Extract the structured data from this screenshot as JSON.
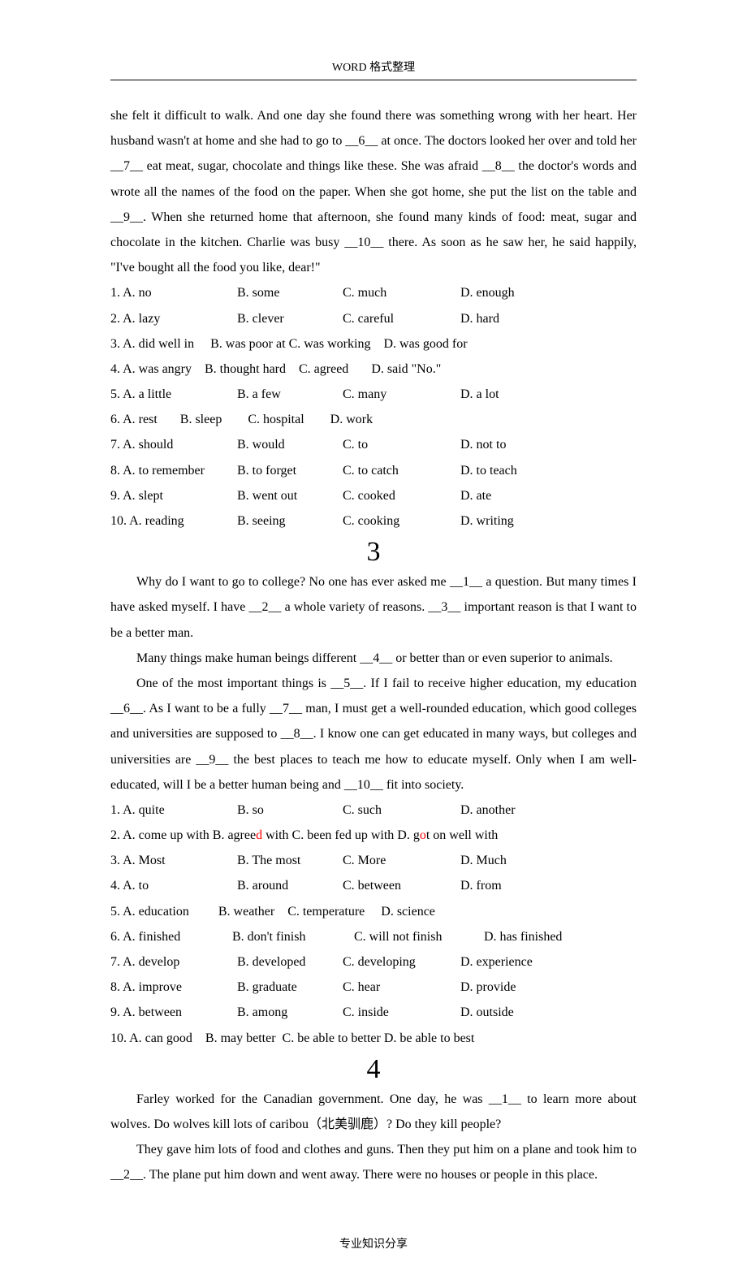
{
  "header": "WORD 格式整理",
  "footer": "专业知识分享",
  "passage2_tail": "she felt it difficult to walk. And one day she found there was something wrong with her heart. Her husband wasn't at home and she had to go to __6__ at once. The doctors looked her over and told her __7__ eat meat, sugar, chocolate and things like these. She was afraid __8__ the doctor's words and wrote all the names of the food on the paper. When she got home, she put the list on the table and __9__. When she returned home that afternoon, she found many kinds of food: meat, sugar and chocolate in the kitchen. Charlie was busy __10__ there. As soon as he saw her, he said happily, \"I've bought all the food you like, dear!\"",
  "options2": [
    {
      "n": "1.",
      "a": "A. no",
      "b": "B. some",
      "c": "C. much",
      "d": "D. enough"
    },
    {
      "n": "2.",
      "a": "A. lazy",
      "b": "B. clever",
      "c": "C. careful",
      "d": "D. hard"
    },
    {
      "n": "3.",
      "a": "A. did well in",
      "b": "B. was poor at",
      "c": "C. was working",
      "d": "D. was good for"
    },
    {
      "n": "4.",
      "a": "A. was angry",
      "b": "B. thought hard",
      "c": "C. agreed",
      "d": "D. said \"No.\""
    },
    {
      "n": "5.",
      "a": "A. a little",
      "b": "B. a few",
      "c": "C. many",
      "d": "D. a lot"
    },
    {
      "n": "6.",
      "a": "A. rest",
      "b": "B. sleep",
      "c": "C. hospital",
      "d": "D. work"
    },
    {
      "n": "7.",
      "a": "A. should",
      "b": "B. would",
      "c": "C. to",
      "d": "D. not to"
    },
    {
      "n": "8.",
      "a": "A. to remember",
      "b": "B. to forget",
      "c": "C. to catch",
      "d": "D. to teach"
    },
    {
      "n": "9.",
      "a": "A. slept",
      "b": "B. went out",
      "c": "C. cooked",
      "d": "D. ate"
    },
    {
      "n": "10.",
      "a": "A. reading",
      "b": "B. seeing",
      "c": "C. cooking",
      "d": "D. writing"
    }
  ],
  "section3_num": "3",
  "passage3_p1": "Why do I want to go to college? No one has ever asked me __1__ a question. But many times I have asked myself. I have __2__ a whole variety of reasons. __3__ important reason is that I want to be a better man.",
  "passage3_p2": "Many things make human beings different __4__ or better than or even superior to animals.",
  "passage3_p3": "One of the most important things is __5__. If I fail to receive higher education, my education __6__. As I want to be a fully __7__ man, I must get a well-rounded education, which good colleges and universities are supposed to __8__. I know one can get educated in many ways, but colleges and universities are __9__ the best places to teach me how to educate myself. Only when I am well-educated, will I be a better human being and __10__ fit into society.",
  "options3": [
    {
      "n": "1.",
      "a": "A. quite",
      "b": "B. so",
      "c": "C. such",
      "d": "D. another"
    },
    {
      "n": "3.",
      "a": "A. Most",
      "b": "B. The most",
      "c": "C. More",
      "d": "D. Much"
    },
    {
      "n": "4.",
      "a": "A. to",
      "b": "B. around",
      "c": "C. between",
      "d": "D. from"
    },
    {
      "n": "6.",
      "a": "A. finished",
      "b": "B. don't finish",
      "c": "C. will not finish",
      "d": "D. has finished"
    },
    {
      "n": "7.",
      "a": "A. develop",
      "b": "B. developed",
      "c": "C. developing",
      "d": "D. experience"
    },
    {
      "n": "8.",
      "a": "A. improve",
      "b": "B. graduate",
      "c": "C. hear",
      "d": "D. provide"
    },
    {
      "n": "9.",
      "a": "A. between",
      "b": "B. among",
      "c": "C. inside",
      "d": "D. outside"
    },
    {
      "n": "10.",
      "a": "A. can good",
      "b": "B. may better",
      "c": "C. be able to better",
      "d": "D. be able to best"
    }
  ],
  "options3_row2": {
    "n": "2.",
    "a": "A. come up with",
    "b_pre": "B. agree",
    "b_red": "d",
    "b_post": " with",
    "c": "C. been fed up with",
    "d_pre": "D. g",
    "d_red": "o",
    "d_post": "t on well with"
  },
  "options3_row5": {
    "n": "5.",
    "a": "A. education",
    "b": "B. weather",
    "c": "C. temperature",
    "d": "D. science"
  },
  "section4_num": "4",
  "passage4_p1": "Farley worked for the Canadian government. One day, he was __1__ to learn more about wolves. Do wolves kill lots of caribou（北美驯鹿）? Do they kill people?",
  "passage4_p2": "They gave him lots of food and clothes and guns. Then they put him on a plane and took him to __2__. The plane put him down and went away. There were no houses or people in this place."
}
